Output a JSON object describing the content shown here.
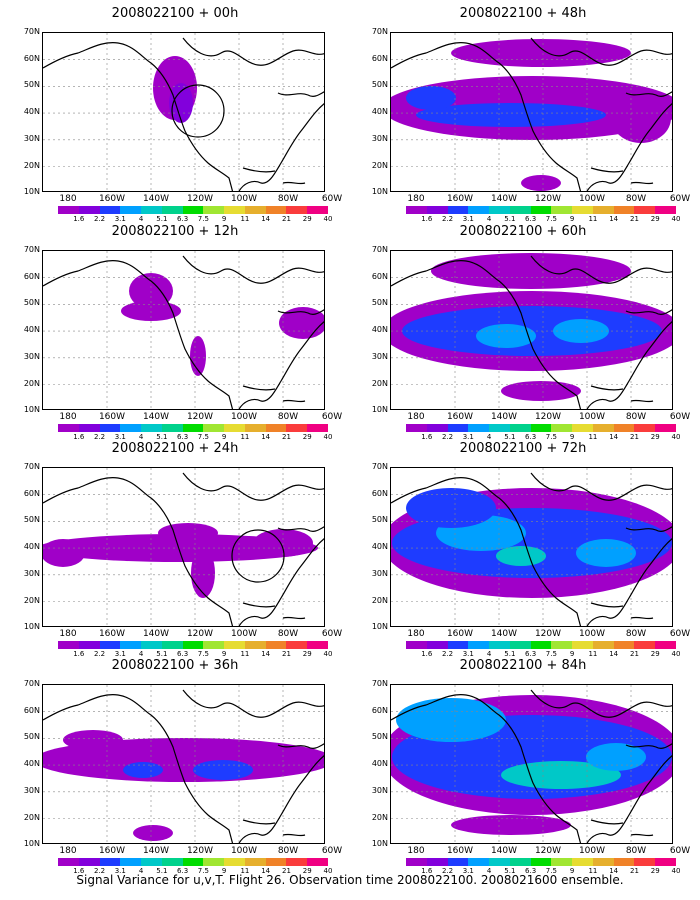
{
  "panels": [
    {
      "title": "2008022100 + 00h"
    },
    {
      "title": "2008022100 + 48h"
    },
    {
      "title": "2008022100 + 12h"
    },
    {
      "title": "2008022100 + 60h"
    },
    {
      "title": "2008022100 + 24h"
    },
    {
      "title": "2008022100 + 72h"
    },
    {
      "title": "2008022100 + 36h"
    },
    {
      "title": "2008022100 + 84h"
    }
  ],
  "axes": {
    "lat_labels": [
      "70N",
      "60N",
      "50N",
      "40N",
      "30N",
      "20N",
      "10N"
    ],
    "lon_labels": [
      "180",
      "160W",
      "140W",
      "120W",
      "100W",
      "80W",
      "60W"
    ]
  },
  "colorbar": {
    "labels": [
      "1.6",
      "2.2",
      "3.1",
      "4",
      "5.1",
      "6.3",
      "7.5",
      "9",
      "11",
      "14",
      "21",
      "29",
      "40"
    ],
    "colors": [
      "#a000c8",
      "#8200dc",
      "#1e3cff",
      "#00a0ff",
      "#00c8c8",
      "#00d28c",
      "#00dc00",
      "#a0e632",
      "#e6dc32",
      "#e6af2d",
      "#f08228",
      "#fa3c3c",
      "#f00082"
    ]
  },
  "caption": "Signal Variance for u,v,T. Flight 26. Observation time 2008022100. 2008021600 ensemble."
}
